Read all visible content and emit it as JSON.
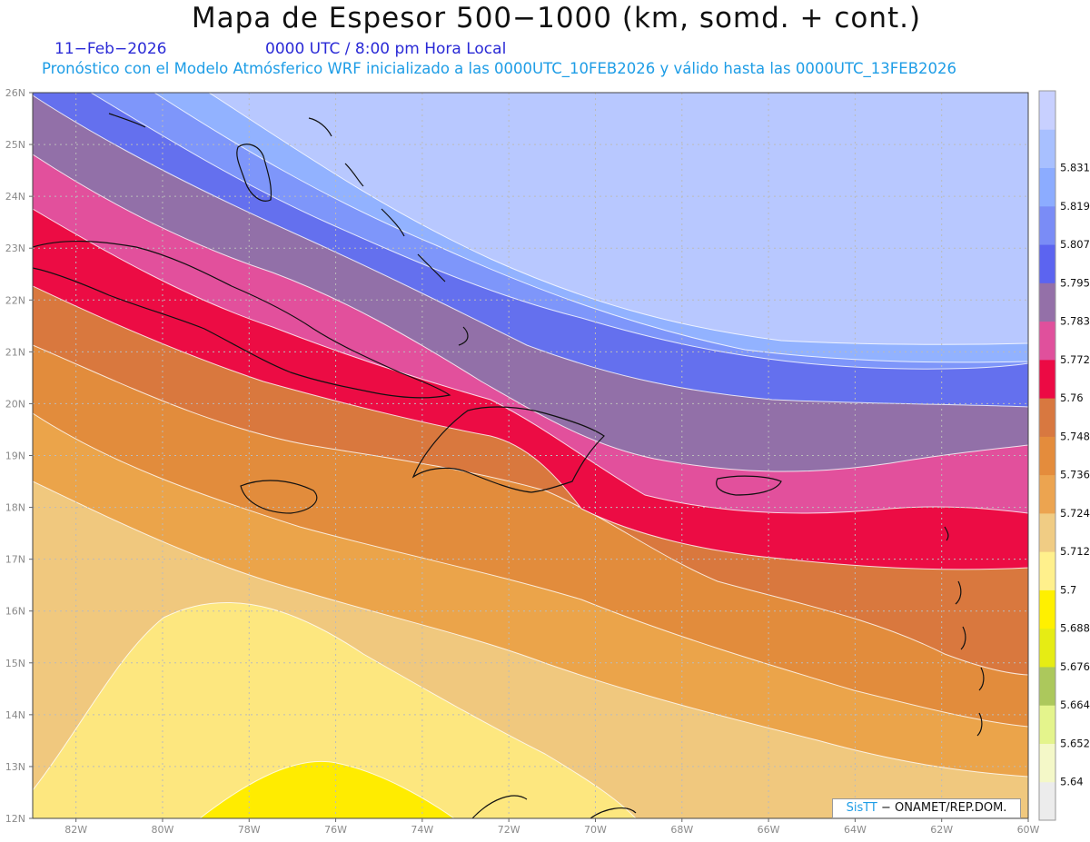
{
  "header": {
    "title": "Mapa de Espesor 500−1000 (km, somd. + cont.)",
    "date": "11−Feb−2026",
    "time": "0000 UTC / 8:00 pm Hora Local",
    "subtitle": "Pronóstico con el Modelo Atmósferico WRF inicializado a las 0000UTC_10FEB2026 y válido hasta las  0000UTC_13FEB2026"
  },
  "map": {
    "lon_range": [
      -83,
      -60
    ],
    "lat_range": [
      12,
      26
    ],
    "lon_labels": [
      "82W",
      "80W",
      "78W",
      "76W",
      "74W",
      "72W",
      "70W",
      "68W",
      "66W",
      "64W",
      "62W",
      "60W"
    ],
    "lat_labels": [
      "12N",
      "13N",
      "14N",
      "15N",
      "16N",
      "17N",
      "18N",
      "19N",
      "20N",
      "21N",
      "22N",
      "23N",
      "24N",
      "25N",
      "26N"
    ],
    "gridlines": true
  },
  "colorbar": {
    "labels": [
      "5.64",
      "5.652",
      "5.664",
      "5.676",
      "5.688",
      "5.7",
      "5.712",
      "5.724",
      "5.736",
      "5.748",
      "5.76",
      "5.772",
      "5.783",
      "5.795",
      "5.807",
      "5.819",
      "5.831"
    ],
    "colors": [
      "#c8d0ff",
      "#a8c0ff",
      "#8cacff",
      "#7a8cf6",
      "#5c64f0",
      "#9470a8",
      "#e0509c",
      "#ec0a44",
      "#d87840",
      "#e48c3c",
      "#eca450",
      "#f0cc84",
      "#fff08c",
      "#fff000",
      "#e6ec14",
      "#acc85c",
      "#e4f48c",
      "#f4f8c8",
      "#ececec"
    ]
  },
  "credit": {
    "brand": "SisTT",
    "text": " − ONAMET/REP.DOM."
  }
}
